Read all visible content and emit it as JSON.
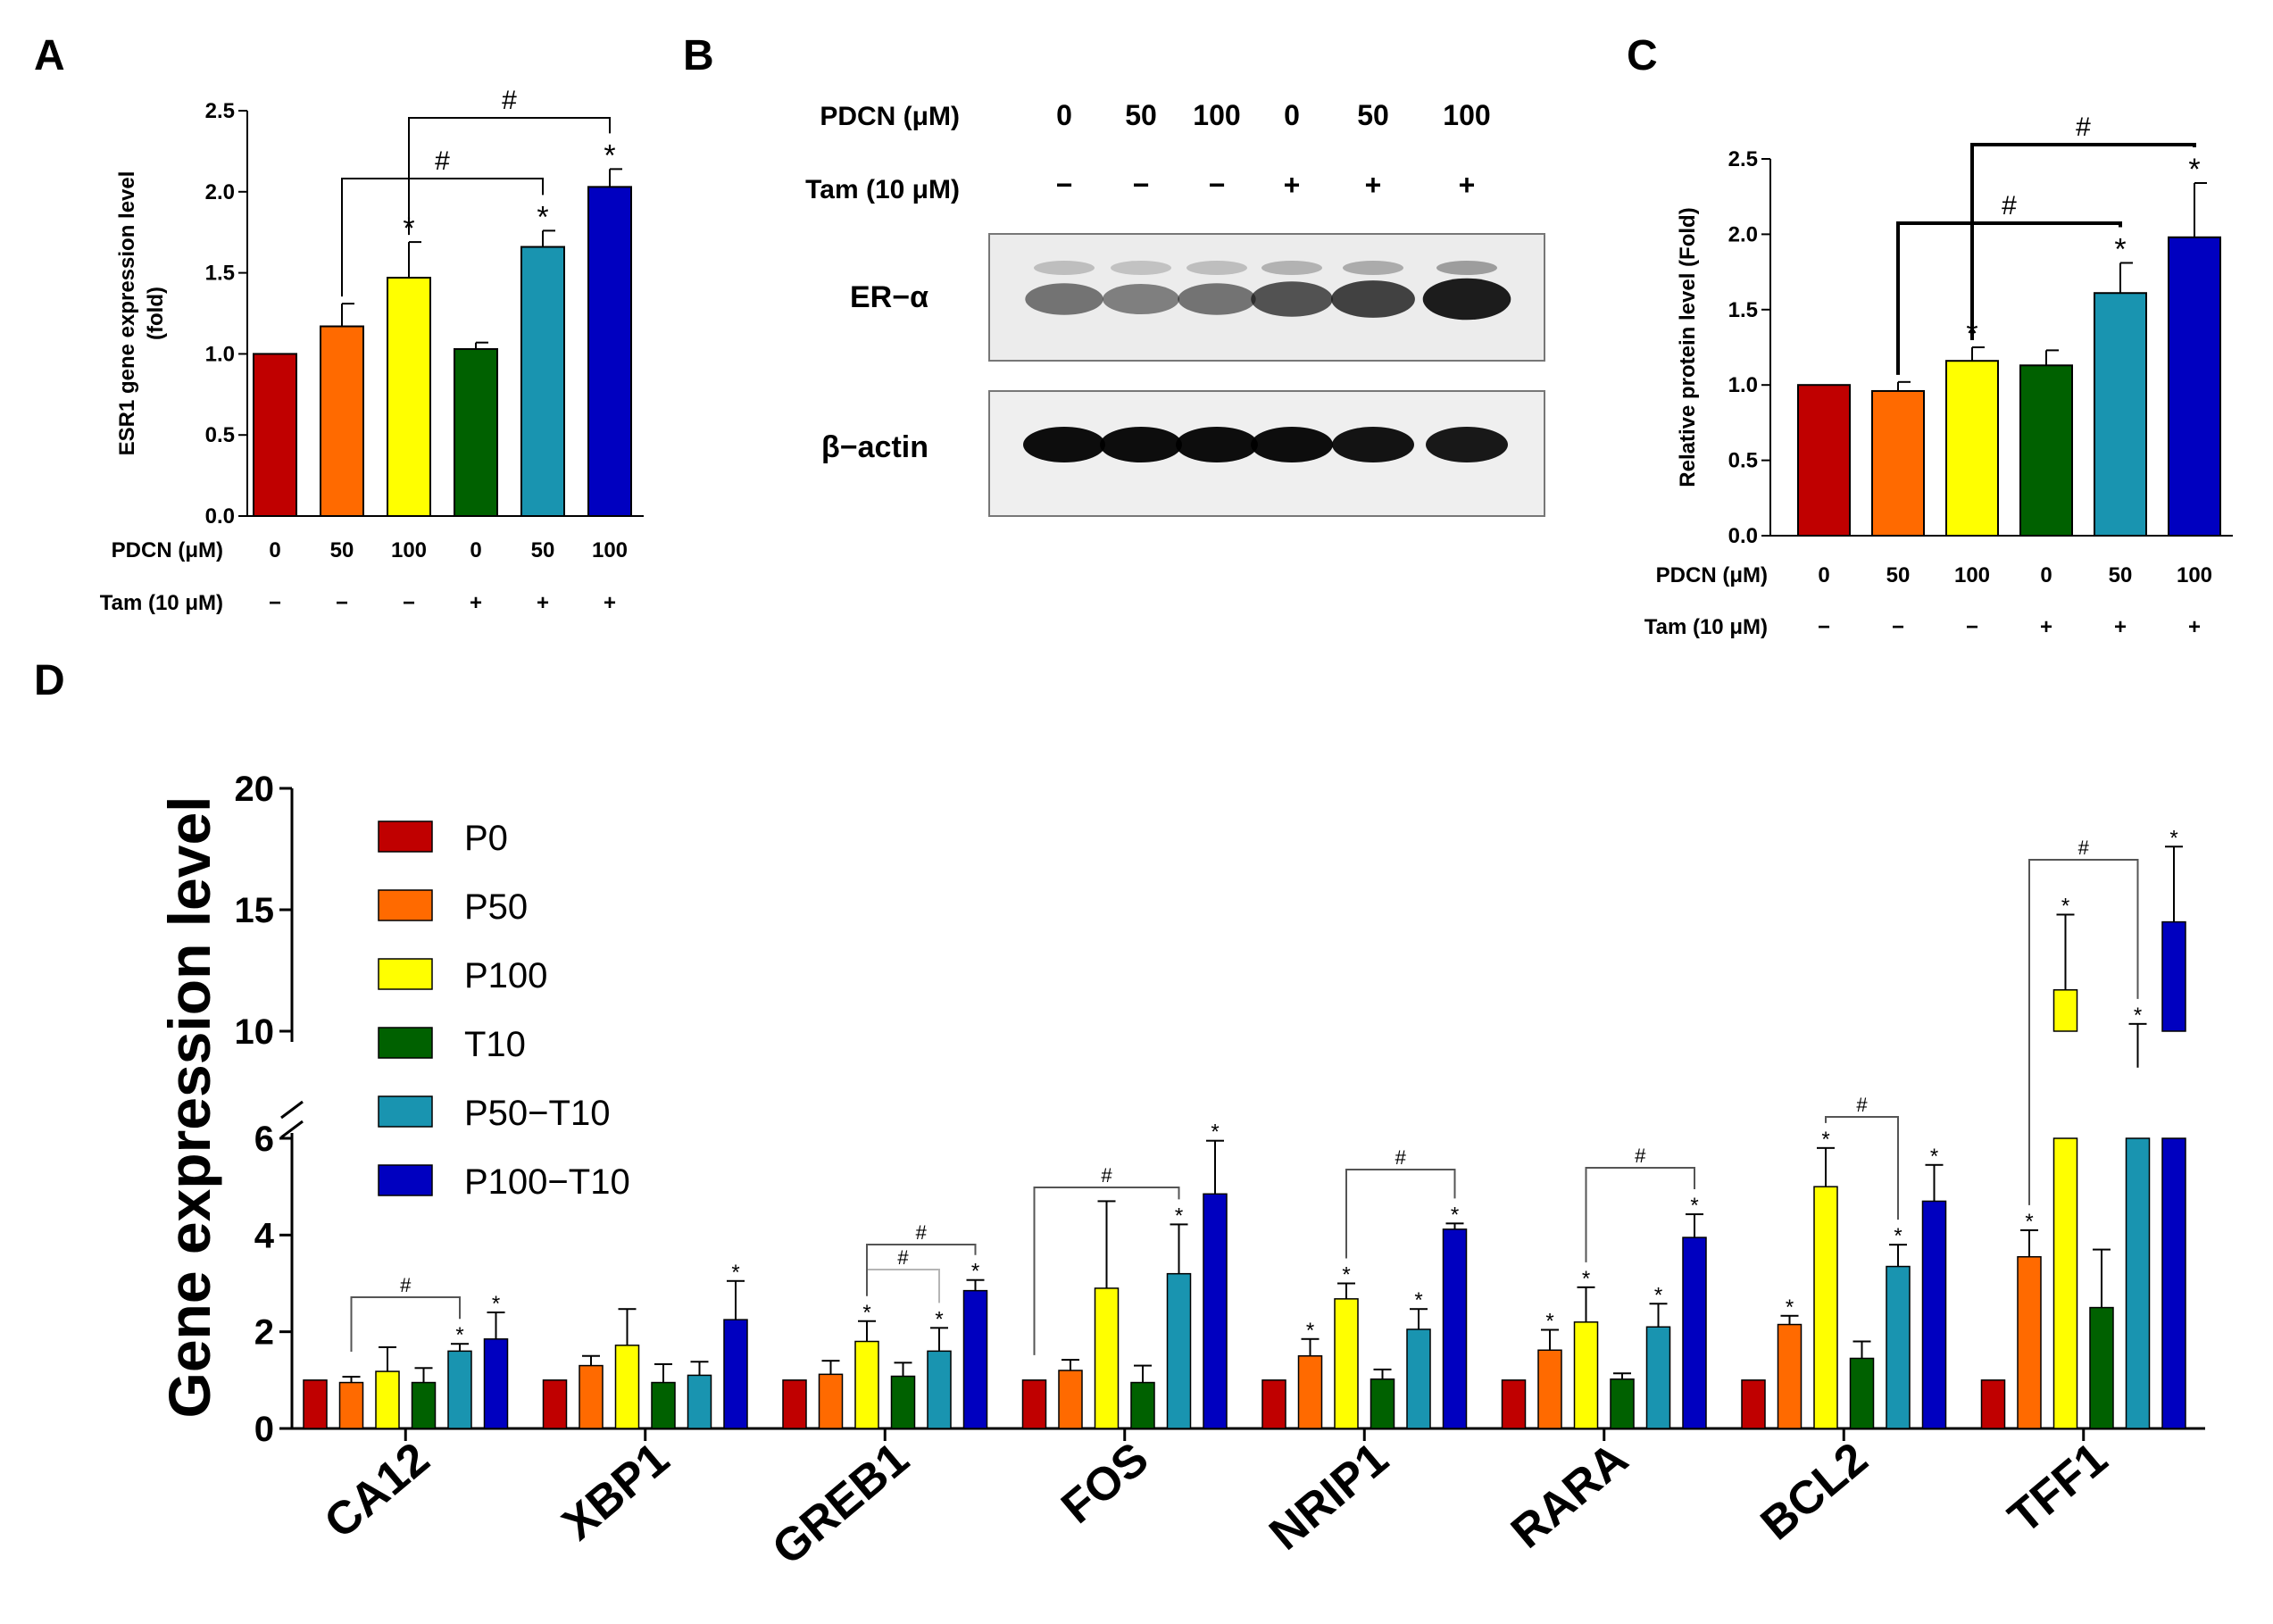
{
  "colors": [
    "#c00000",
    "#ff6a00",
    "#ffff00",
    "#006100",
    "#1994b0",
    "#0000c0"
  ],
  "panel_letters": [
    "A",
    "B",
    "C",
    "D"
  ],
  "pdcn_label": "PDCN (μM)",
  "tam_label": "Tam (10 μM)",
  "pdcn_values": [
    "0",
    "50",
    "100",
    "0",
    "50",
    "100"
  ],
  "tam_values": [
    "−",
    "−",
    "−",
    "+",
    "+",
    "+"
  ],
  "chart_data": [
    {
      "panel": "A",
      "type": "bar",
      "ylabel": "ESR1 gene expression level (fold)",
      "ylabel_lines": [
        "ESR1 gene expression level",
        "(fold)"
      ],
      "ylim": [
        0,
        2.5
      ],
      "yticks": [
        "0.0",
        "0.5",
        "1.0",
        "1.5",
        "2.0",
        "2.5"
      ],
      "categories": [
        "0/−",
        "50/−",
        "100/−",
        "0/+",
        "50/+",
        "100/+"
      ],
      "values": [
        1.0,
        1.17,
        1.47,
        1.03,
        1.66,
        2.03
      ],
      "errors": [
        0,
        0.14,
        0.22,
        0.04,
        0.1,
        0.11
      ],
      "stars": [
        false,
        false,
        true,
        false,
        true,
        true
      ],
      "brackets": [
        {
          "from": 1,
          "to": 4,
          "label": "#"
        },
        {
          "from": 2,
          "to": 5,
          "label": "#"
        }
      ]
    },
    {
      "panel": "C",
      "type": "bar",
      "ylabel": "Relative protein level (Fold)",
      "ylim": [
        0,
        2.5
      ],
      "yticks": [
        "0.0",
        "0.5",
        "1.0",
        "1.5",
        "2.0",
        "2.5"
      ],
      "categories": [
        "0/−",
        "50/−",
        "100/−",
        "0/+",
        "50/+",
        "100/+"
      ],
      "values": [
        1.0,
        0.96,
        1.16,
        1.13,
        1.61,
        1.98
      ],
      "errors": [
        0,
        0.06,
        0.09,
        0.1,
        0.2,
        0.36
      ],
      "stars": [
        false,
        false,
        true,
        false,
        true,
        true
      ],
      "brackets": [
        {
          "from": 1,
          "to": 4,
          "label": "#"
        },
        {
          "from": 2,
          "to": 5,
          "label": "#"
        }
      ]
    },
    {
      "panel": "D",
      "type": "bar",
      "ylabel": "Gene expression level",
      "yaxis_break": [
        6,
        10
      ],
      "ylim": [
        0,
        20
      ],
      "yticks": [
        "0",
        "2",
        "4",
        "6",
        "10",
        "15",
        "20"
      ],
      "categories": [
        "CA12",
        "XBP1",
        "GREB1",
        "FOS",
        "NRIP1",
        "RARA",
        "BCL2",
        "TFF1"
      ],
      "series": [
        {
          "name": "P0",
          "values": [
            1,
            1,
            1,
            1,
            1,
            1,
            1,
            1
          ],
          "errors": [
            0,
            0,
            0,
            0,
            0,
            0,
            0,
            0
          ],
          "stars": [
            false,
            false,
            false,
            false,
            false,
            false,
            false,
            false
          ]
        },
        {
          "name": "P50",
          "values": [
            0.95,
            1.3,
            1.12,
            1.2,
            1.5,
            1.62,
            2.15,
            3.55
          ],
          "errors": [
            0.12,
            0.2,
            0.28,
            0.22,
            0.35,
            0.42,
            0.18,
            0.55
          ],
          "stars": [
            false,
            false,
            false,
            false,
            true,
            true,
            true,
            true
          ]
        },
        {
          "name": "P100",
          "values": [
            1.18,
            1.72,
            1.8,
            2.9,
            2.68,
            2.2,
            5.0,
            11.7
          ],
          "errors": [
            0.5,
            0.75,
            0.42,
            1.8,
            0.32,
            0.72,
            0.8,
            3.1
          ],
          "stars": [
            false,
            false,
            true,
            false,
            true,
            true,
            true,
            true
          ]
        },
        {
          "name": "T10",
          "values": [
            0.95,
            0.95,
            1.08,
            0.95,
            1.02,
            1.02,
            1.45,
            2.5
          ],
          "errors": [
            0.3,
            0.38,
            0.28,
            0.35,
            0.2,
            0.12,
            0.35,
            1.2
          ],
          "stars": [
            false,
            false,
            false,
            false,
            false,
            false,
            false,
            false
          ]
        },
        {
          "name": "P50−T10",
          "values": [
            1.6,
            1.1,
            1.6,
            3.2,
            2.05,
            2.1,
            3.35,
            8.5
          ],
          "errors": [
            0.15,
            0.28,
            0.48,
            1.02,
            0.42,
            0.48,
            0.45,
            1.8
          ],
          "stars": [
            true,
            false,
            true,
            true,
            true,
            true,
            true,
            true
          ]
        },
        {
          "name": "P100−T10",
          "values": [
            1.85,
            2.25,
            2.85,
            4.85,
            4.12,
            3.95,
            4.7,
            14.5
          ],
          "errors": [
            0.55,
            0.8,
            0.22,
            1.1,
            0.12,
            0.48,
            0.75,
            3.1
          ],
          "stars": [
            true,
            true,
            true,
            true,
            true,
            true,
            true,
            true
          ]
        }
      ],
      "brackets": [
        {
          "category": 0,
          "from": 1,
          "to": 4,
          "label": "#"
        },
        {
          "category": 2,
          "from": 2,
          "to": 4,
          "label": "#",
          "faint": true
        },
        {
          "category": 2,
          "from": 2,
          "to": 5,
          "label": "#"
        },
        {
          "category": 3,
          "from": 0,
          "to": 4,
          "label": "#"
        },
        {
          "category": 4,
          "from": 2,
          "to": 5,
          "label": "#"
        },
        {
          "category": 5,
          "from": 2,
          "to": 5,
          "label": "#"
        },
        {
          "category": 6,
          "from": 2,
          "to": 4,
          "label": "#"
        },
        {
          "category": 7,
          "from": 1,
          "to": 4,
          "label": "#"
        }
      ]
    }
  ],
  "western_blot": {
    "panel": "B",
    "row_labels": [
      "ER−α",
      "β−actin"
    ],
    "band_intensity": {
      "er_alpha": [
        0.55,
        0.5,
        0.55,
        0.7,
        0.78,
        0.95
      ],
      "beta_actin": [
        0.95,
        0.95,
        0.95,
        0.95,
        0.92,
        0.9
      ]
    }
  },
  "legend_labels": [
    "P0",
    "P50",
    "P100",
    "T10",
    "P50−T10",
    "P100−T10"
  ],
  "star_symbol": "*",
  "hash_symbol": "#"
}
